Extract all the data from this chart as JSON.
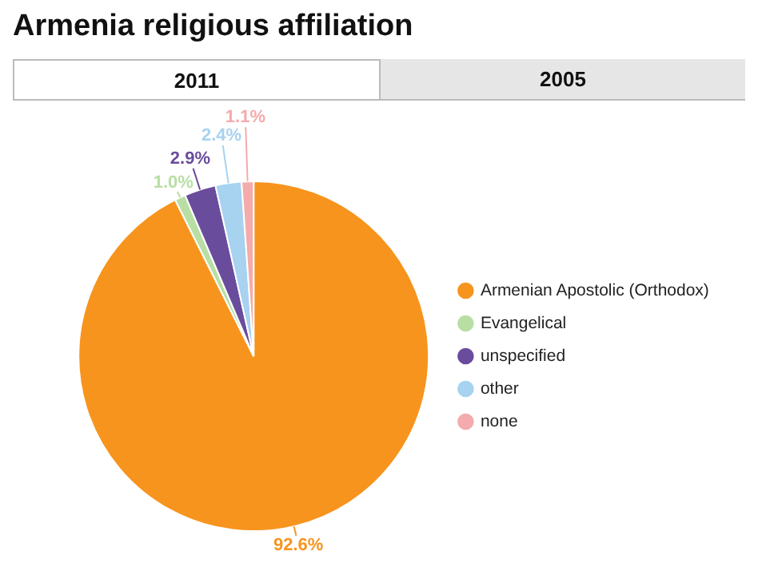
{
  "chart_data": {
    "type": "pie",
    "title": "Armenia religious affiliation",
    "annotations": [
      "2011",
      "2005"
    ],
    "categories": [
      "Armenian Apostolic (Orthodox)",
      "Evangelical",
      "unspecified",
      "other",
      "none"
    ],
    "values": [
      92.6,
      1.0,
      2.9,
      2.4,
      1.1
    ],
    "colors": [
      "#f7941d",
      "#b9dea4",
      "#6a4c9c",
      "#a7d2f0",
      "#f4abab"
    ],
    "value_labels": [
      "92.6%",
      "1.0%",
      "2.9%",
      "2.4%",
      "1.1%"
    ],
    "legend": "right"
  }
}
